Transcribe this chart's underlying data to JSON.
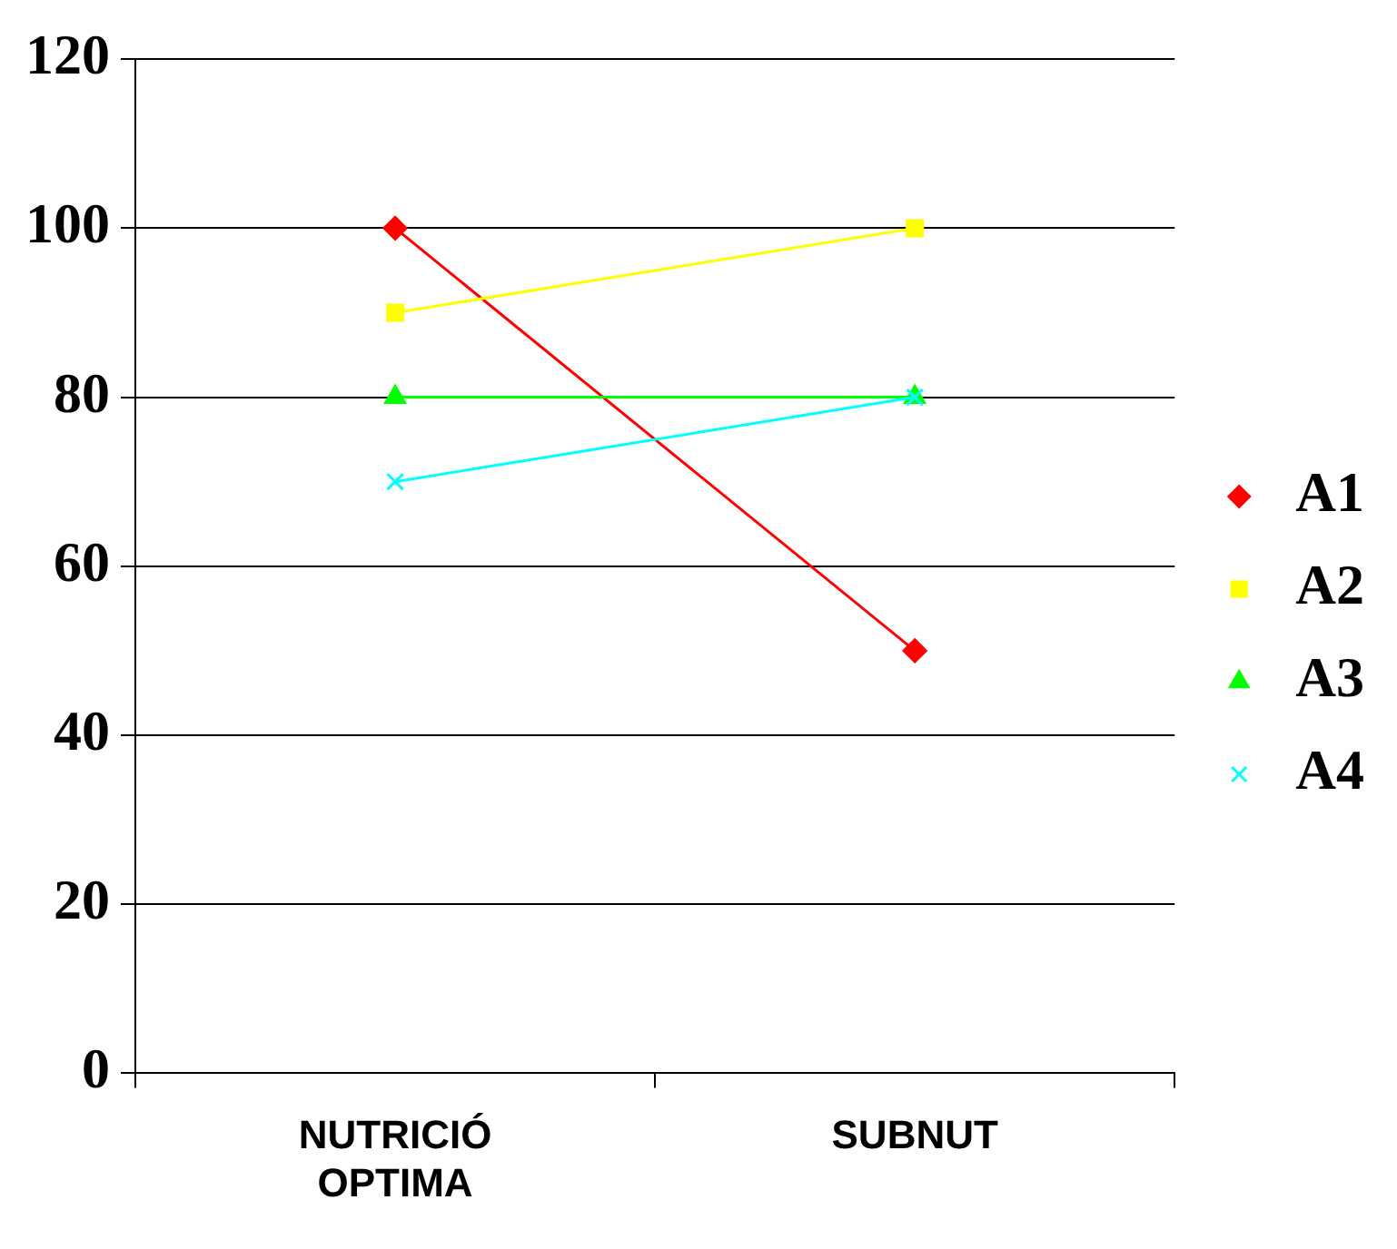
{
  "chart_data": {
    "type": "line",
    "categories": [
      "NUTRICIÓ OPTIMA",
      "SUBNUT"
    ],
    "series": [
      {
        "name": "A1",
        "color": "#ff0000",
        "values": [
          100,
          50
        ],
        "marker": "diamond"
      },
      {
        "name": "A2",
        "color": "#ffff00",
        "values": [
          90,
          100
        ],
        "marker": "square"
      },
      {
        "name": "A3",
        "color": "#00ff00",
        "values": [
          80,
          80
        ],
        "marker": "triangle"
      },
      {
        "name": "A4",
        "color": "#00ffff",
        "values": [
          70,
          80
        ],
        "marker": "cross"
      }
    ],
    "ylim": [
      0,
      120
    ],
    "yticks": [
      0,
      20,
      40,
      60,
      80,
      100,
      120
    ],
    "grid": "y",
    "legend": "right",
    "line_style": "solid"
  }
}
